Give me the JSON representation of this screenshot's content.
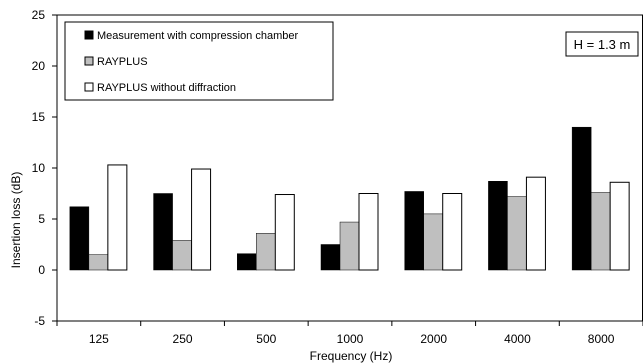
{
  "chart_data": {
    "type": "bar",
    "xlabel": "Frequency (Hz)",
    "ylabel": "Insertion loss (dB)",
    "ylim": [
      -5,
      25
    ],
    "yticks": [
      "-5",
      "0",
      "5",
      "10",
      "15",
      "20",
      "25"
    ],
    "categories": [
      "125",
      "250",
      "500",
      "1000",
      "2000",
      "4000",
      "8000"
    ],
    "series": [
      {
        "name": "Measurement with compression chamber",
        "color": "#000000",
        "values": [
          6.2,
          7.5,
          1.6,
          2.5,
          7.7,
          8.7,
          14.0
        ]
      },
      {
        "name": "RAYPLUS",
        "color": "#bfbfbf",
        "values": [
          1.5,
          2.9,
          3.6,
          4.7,
          5.5,
          7.2,
          7.6
        ]
      },
      {
        "name": "RAYPLUS without diffraction",
        "color": "#ffffff",
        "values": [
          10.3,
          9.9,
          7.4,
          7.5,
          7.5,
          9.1,
          8.6
        ]
      }
    ],
    "annotation": "H = 1.3 m",
    "legend_position": "top-left",
    "grid": false
  }
}
